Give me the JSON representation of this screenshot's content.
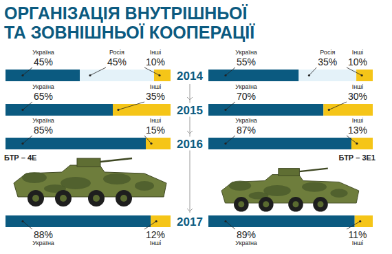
{
  "title": [
    "ОРГАНІЗАЦІЯ ВНУТРІШНЬОЇ",
    "ТА ЗОВНІШНЬОЇ КООПЕРАЦІЇ"
  ],
  "chart_data": [
    {
      "type": "bar",
      "title": "БТР – 4Е",
      "orientation": "horizontal",
      "stacked": true,
      "data_labels": true,
      "tick_labels": false,
      "categories": [
        "2014",
        "2015",
        "2016",
        "2017"
      ],
      "xlim": [
        0,
        100
      ],
      "series": [
        {
          "name": "Україна",
          "color": "#0b5a80",
          "values": [
            45,
            65,
            85,
            88
          ],
          "value_labels": [
            "45%",
            "65%",
            "85%",
            "88%"
          ]
        },
        {
          "name": "Росія",
          "color": "#e4f2f9",
          "values": [
            45,
            null,
            null,
            null
          ],
          "value_labels": [
            "45%",
            null,
            null,
            null
          ]
        },
        {
          "name": "Інші",
          "color": "#f5c518",
          "values": [
            10,
            35,
            15,
            12
          ],
          "value_labels": [
            "10%",
            "35%",
            "15%",
            "12%"
          ]
        }
      ]
    },
    {
      "type": "bar",
      "title": "БТР – 3Е1",
      "orientation": "horizontal",
      "stacked": true,
      "data_labels": true,
      "tick_labels": false,
      "categories": [
        "2014",
        "2015",
        "2016",
        "2017"
      ],
      "xlim": [
        0,
        100
      ],
      "series": [
        {
          "name": "Україна",
          "color": "#0b5a80",
          "values": [
            55,
            70,
            87,
            89
          ],
          "value_labels": [
            "55%",
            "70%",
            "87%",
            "89%"
          ]
        },
        {
          "name": "Росія",
          "color": "#e4f2f9",
          "values": [
            35,
            null,
            null,
            null
          ],
          "value_labels": [
            "35%",
            null,
            null,
            null
          ]
        },
        {
          "name": "Інші",
          "color": "#f5c518",
          "values": [
            10,
            30,
            13,
            11
          ],
          "value_labels": [
            "10%",
            "30%",
            "13%",
            "11%"
          ]
        }
      ]
    }
  ]
}
